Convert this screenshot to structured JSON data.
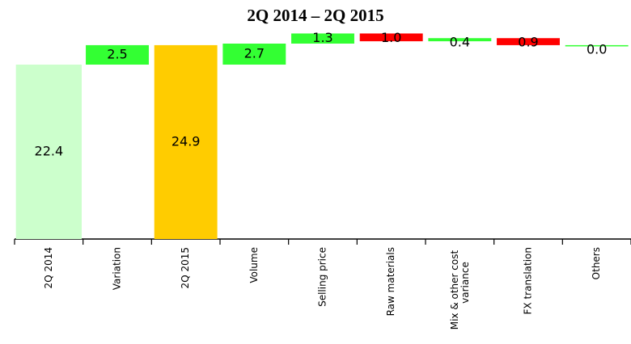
{
  "chart_data": {
    "type": "waterfall",
    "title": "2Q 2014 – 2Q 2015",
    "categories": [
      "2Q 2014",
      "Variation",
      "2Q 2015",
      "Volume",
      "Selling price",
      "Raw materials",
      "Mix & other cost variance",
      "FX translation",
      "Others"
    ],
    "values": [
      22.4,
      2.5,
      24.9,
      2.7,
      1.3,
      1.0,
      0.4,
      0.9,
      0.0
    ],
    "value_labels": [
      "22.4",
      "2.5",
      "24.9",
      "2.7",
      "1.3",
      "1.0",
      "0.4",
      "0.9",
      "0.0"
    ],
    "kinds": [
      "start",
      "increase",
      "end",
      "increase",
      "increase",
      "decrease",
      "increase",
      "decrease",
      "increase"
    ],
    "colors": [
      "#ccffcc",
      "#33ff33",
      "#ffcc00",
      "#33ff33",
      "#33ff33",
      "#ff0000",
      "#33ff33",
      "#ff0000",
      "#33ff33"
    ],
    "ylim": [
      0,
      30.7
    ]
  }
}
